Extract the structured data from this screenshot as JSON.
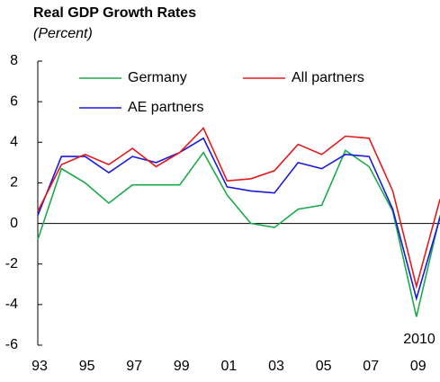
{
  "chart_data": {
    "type": "line",
    "title": "Real GDP Growth Rates",
    "subtitle": "(Percent)",
    "categories": [
      "93",
      null,
      "95",
      null,
      "97",
      null,
      "99",
      null,
      "01",
      null,
      "03",
      null,
      "05",
      null,
      "07",
      null,
      "09",
      null
    ],
    "annotation": "2010",
    "series": [
      {
        "name": "Germany",
        "color": "#1aaa4a",
        "values": [
          -0.8,
          2.7,
          2.0,
          1.0,
          1.9,
          1.9,
          1.9,
          3.5,
          1.4,
          0.0,
          -0.2,
          0.7,
          0.9,
          3.6,
          2.8,
          0.6,
          -4.6,
          0.4
        ]
      },
      {
        "name": "All partners",
        "color": "#e31a1c",
        "values": [
          0.6,
          2.9,
          3.4,
          2.9,
          3.7,
          2.8,
          3.5,
          4.7,
          2.1,
          2.2,
          2.6,
          3.9,
          3.4,
          4.3,
          4.2,
          1.6,
          -3.1,
          1.2
        ]
      },
      {
        "name": "AE partners",
        "color": "#1a1adc",
        "values": [
          0.4,
          3.3,
          3.3,
          2.5,
          3.3,
          3.0,
          3.5,
          4.2,
          1.8,
          1.6,
          1.5,
          3.0,
          2.7,
          3.4,
          3.3,
          0.7,
          -3.7,
          0.3
        ]
      }
    ],
    "ylim": [
      -6,
      8
    ],
    "yticks": [
      -6,
      -4,
      -2,
      0,
      2,
      4,
      6,
      8
    ],
    "grid": false
  }
}
